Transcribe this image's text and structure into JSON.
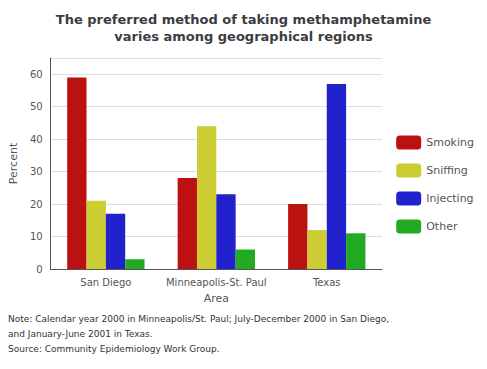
{
  "chart_data": {
    "type": "bar",
    "title": "The preferred method of taking methamphetamine\nvaries among geographical regions",
    "xlabel": "Area",
    "ylabel": "Percent",
    "categories": [
      "San Diego",
      "Minneapolis-St. Paul",
      "Texas"
    ],
    "series": [
      {
        "name": "Smoking",
        "color": "#bb1111",
        "values": [
          59,
          28,
          20
        ]
      },
      {
        "name": "Sniffing",
        "color": "#cccc33",
        "values": [
          21,
          44,
          12
        ]
      },
      {
        "name": "Injecting",
        "color": "#2222cc",
        "values": [
          17,
          23,
          57
        ]
      },
      {
        "name": "Other",
        "color": "#22aa22",
        "values": [
          3,
          6,
          11
        ]
      }
    ],
    "ylim": [
      0,
      65
    ],
    "yticks": [
      0,
      10,
      20,
      30,
      40,
      50,
      60
    ],
    "grid": true,
    "legend": "right",
    "annotations": [
      "Note: Calendar year 2000 in Minneapolis/St. Paul; July-December 2000 in San Diego,",
      "and January-June 2001 in Texas.",
      "Source: Community Epidemiology Work Group."
    ]
  }
}
